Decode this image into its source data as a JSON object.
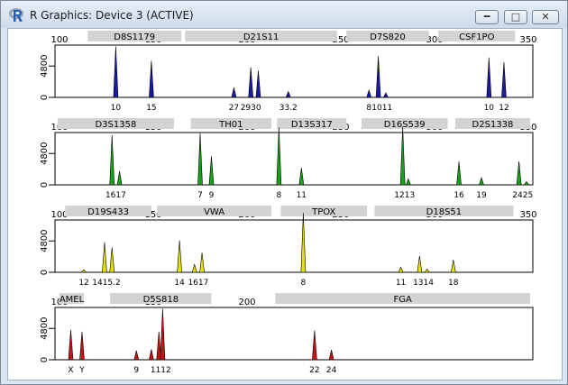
{
  "window": {
    "title": "R Graphics: Device 3 (ACTIVE)",
    "app_icon": "r-logo-icon",
    "controls": {
      "minimize": "minimize-icon",
      "maximize": "maximize-icon",
      "close": "close-icon"
    }
  },
  "chart_data": [
    {
      "type": "bar",
      "dye": "blue",
      "color": "#1a1aa6",
      "xlim": [
        100,
        350
      ],
      "x_ticks": [
        100,
        150,
        200,
        250,
        300,
        350
      ],
      "y_ticks": [
        0,
        4800
      ],
      "ylim": [
        0,
        8000
      ],
      "loci": [
        {
          "name": "D8S1179",
          "range": [
            115,
            165
          ]
        },
        {
          "name": "D21S11",
          "range": [
            167,
            248
          ]
        },
        {
          "name": "D7S820",
          "range": [
            253,
            297
          ]
        },
        {
          "name": "CSF1PO",
          "range": [
            302,
            343
          ]
        }
      ],
      "peaks": [
        {
          "x": 130,
          "h": 7800
        },
        {
          "x": 149,
          "h": 5600
        },
        {
          "x": 193,
          "h": 1500
        },
        {
          "x": 202,
          "h": 4600
        },
        {
          "x": 206,
          "h": 4100
        },
        {
          "x": 222,
          "h": 900
        },
        {
          "x": 265,
          "h": 1100
        },
        {
          "x": 270,
          "h": 6300
        },
        {
          "x": 274,
          "h": 700
        },
        {
          "x": 329,
          "h": 6100
        },
        {
          "x": 337,
          "h": 5400
        }
      ],
      "allele_labels": [
        {
          "x": 130,
          "text": "10"
        },
        {
          "x": 149,
          "text": "15"
        },
        {
          "x": 193,
          "text": "27"
        },
        {
          "x": 202,
          "text": "2930"
        },
        {
          "x": 222,
          "text": "33.2"
        },
        {
          "x": 265,
          "text": "8"
        },
        {
          "x": 272,
          "text": "1011"
        },
        {
          "x": 329,
          "text": "10"
        },
        {
          "x": 337,
          "text": "12"
        }
      ]
    },
    {
      "type": "bar",
      "dye": "green",
      "color": "#17a317",
      "xlim": [
        100,
        350
      ],
      "x_ticks": [
        100,
        150,
        200,
        250,
        300,
        350
      ],
      "y_ticks": [
        0,
        4800
      ],
      "ylim": [
        0,
        8000
      ],
      "loci": [
        {
          "name": "D3S1358",
          "range": [
            99,
            161
          ]
        },
        {
          "name": "TH01",
          "range": [
            170,
            213
          ]
        },
        {
          "name": "D13S317",
          "range": [
            216,
            253
          ]
        },
        {
          "name": "D16S539",
          "range": [
            261,
            307
          ]
        },
        {
          "name": "D2S1338",
          "range": [
            311,
            351
          ]
        }
      ],
      "peaks": [
        {
          "x": 128,
          "h": 7600
        },
        {
          "x": 132,
          "h": 2100
        },
        {
          "x": 175,
          "h": 7900
        },
        {
          "x": 181,
          "h": 4400
        },
        {
          "x": 217,
          "h": 8800
        },
        {
          "x": 229,
          "h": 2600
        },
        {
          "x": 283,
          "h": 8900
        },
        {
          "x": 286,
          "h": 900
        },
        {
          "x": 313,
          "h": 3600
        },
        {
          "x": 325,
          "h": 1100
        },
        {
          "x": 345,
          "h": 3600
        },
        {
          "x": 349,
          "h": 500
        }
      ],
      "allele_labels": [
        {
          "x": 130,
          "text": "1617"
        },
        {
          "x": 175,
          "text": "7"
        },
        {
          "x": 181,
          "text": "9"
        },
        {
          "x": 217,
          "text": "8"
        },
        {
          "x": 229,
          "text": "11"
        },
        {
          "x": 284,
          "text": "1213"
        },
        {
          "x": 313,
          "text": "16"
        },
        {
          "x": 325,
          "text": "19"
        },
        {
          "x": 347,
          "text": "2425"
        }
      ]
    },
    {
      "type": "bar",
      "dye": "yellow",
      "color": "#e6e000",
      "xlim": [
        100,
        350
      ],
      "x_ticks": [
        100,
        150,
        200,
        250,
        300,
        350
      ],
      "y_ticks": [
        0,
        4800
      ],
      "ylim": [
        0,
        8000
      ],
      "loci": [
        {
          "name": "D19S433",
          "range": [
            103,
            149
          ]
        },
        {
          "name": "VWA",
          "range": [
            152,
            213
          ]
        },
        {
          "name": "TPOX",
          "range": [
            218,
            264
          ]
        },
        {
          "name": "D18S51",
          "range": [
            268,
            342
          ]
        }
      ],
      "peaks": [
        {
          "x": 113,
          "h": 400
        },
        {
          "x": 124,
          "h": 4600
        },
        {
          "x": 128,
          "h": 3800
        },
        {
          "x": 164,
          "h": 4900
        },
        {
          "x": 172,
          "h": 1200
        },
        {
          "x": 176,
          "h": 3000
        },
        {
          "x": 230,
          "h": 9100
        },
        {
          "x": 282,
          "h": 800
        },
        {
          "x": 292,
          "h": 2500
        },
        {
          "x": 296,
          "h": 500
        },
        {
          "x": 310,
          "h": 1900
        }
      ],
      "allele_labels": [
        {
          "x": 113,
          "text": "12"
        },
        {
          "x": 125,
          "text": "1415.2"
        },
        {
          "x": 164,
          "text": "14"
        },
        {
          "x": 174,
          "text": "1617"
        },
        {
          "x": 230,
          "text": "8"
        },
        {
          "x": 282,
          "text": "11"
        },
        {
          "x": 294,
          "text": "1314"
        },
        {
          "x": 310,
          "text": "18"
        }
      ]
    },
    {
      "type": "bar",
      "dye": "red",
      "color": "#c81414",
      "xlim": [
        100,
        350
      ],
      "x_ticks": [
        100,
        150,
        200
      ],
      "y_ticks": [
        0,
        4800
      ],
      "ylim": [
        0,
        8000
      ],
      "loci": [
        {
          "name": "AMEL",
          "range": [
            100,
            113
          ]
        },
        {
          "name": "D5S818",
          "range": [
            127,
            181
          ]
        },
        {
          "name": "FGA",
          "range": [
            215,
            351
          ]
        }
      ],
      "peaks": [
        {
          "x": 106,
          "h": 4600
        },
        {
          "x": 112,
          "h": 4300
        },
        {
          "x": 141,
          "h": 1400
        },
        {
          "x": 149,
          "h": 1600
        },
        {
          "x": 153,
          "h": 4300
        },
        {
          "x": 155,
          "h": 7800
        },
        {
          "x": 236,
          "h": 4500
        },
        {
          "x": 245,
          "h": 1500
        }
      ],
      "allele_labels": [
        {
          "x": 106,
          "text": "X"
        },
        {
          "x": 112,
          "text": "Y"
        },
        {
          "x": 141,
          "text": "9"
        },
        {
          "x": 154,
          "text": "1112"
        },
        {
          "x": 236,
          "text": "22"
        },
        {
          "x": 245,
          "text": "24"
        }
      ]
    }
  ]
}
